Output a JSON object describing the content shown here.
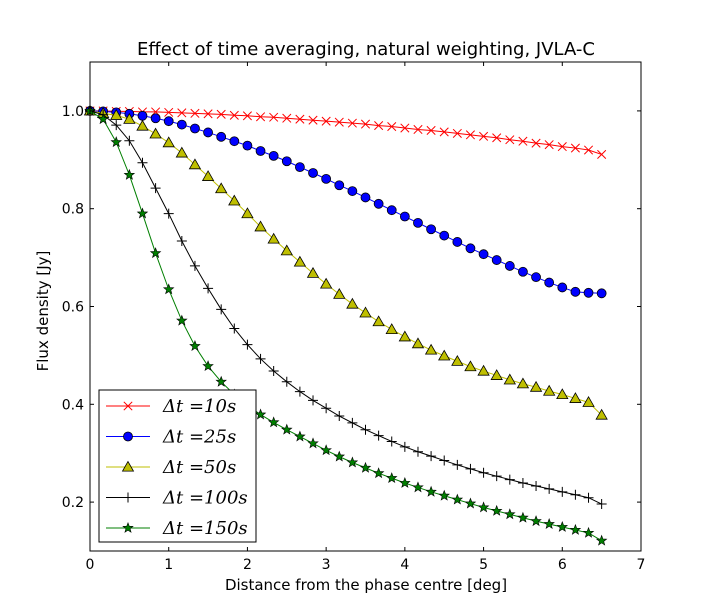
{
  "chart_data": {
    "type": "line",
    "title": "Effect of time averaging, natural weighting, JVLA-C",
    "xlabel": "Distance from the phase centre [deg]",
    "ylabel": "Flux density [Jy]",
    "xlim": [
      0,
      7
    ],
    "ylim": [
      0.1,
      1.1
    ],
    "x_ticks": [
      "0",
      "1",
      "2",
      "3",
      "4",
      "5",
      "6",
      "7"
    ],
    "y_ticks": [
      "0.2",
      "0.4",
      "0.6",
      "0.8",
      "1.0"
    ],
    "legend_placement": "lower-left",
    "grid": false,
    "x": [
      0.0,
      0.1667,
      0.3333,
      0.5,
      0.6667,
      0.8333,
      1.0,
      1.1667,
      1.3333,
      1.5,
      1.6667,
      1.8333,
      2.0,
      2.1667,
      2.3333,
      2.5,
      2.6667,
      2.8333,
      3.0,
      3.1667,
      3.3333,
      3.5,
      3.6667,
      3.8333,
      4.0,
      4.1667,
      4.3333,
      4.5,
      4.6667,
      4.8333,
      5.0,
      5.1667,
      5.3333,
      5.5,
      5.6667,
      5.8333,
      6.0,
      6.1667,
      6.3333,
      6.5
    ],
    "series": [
      {
        "name": "Δt = 10s",
        "label_main": "Δt",
        "label_rest": "=10s",
        "color": "#ff0000",
        "marker": "x",
        "values": [
          1.0,
          1.0,
          0.999,
          0.999,
          0.998,
          0.998,
          0.997,
          0.996,
          0.995,
          0.994,
          0.993,
          0.991,
          0.99,
          0.988,
          0.987,
          0.985,
          0.983,
          0.981,
          0.979,
          0.977,
          0.975,
          0.973,
          0.97,
          0.968,
          0.965,
          0.962,
          0.96,
          0.957,
          0.954,
          0.951,
          0.948,
          0.945,
          0.941,
          0.938,
          0.934,
          0.931,
          0.927,
          0.924,
          0.92,
          0.911
        ]
      },
      {
        "name": "Δt = 25s",
        "label_main": "Δt",
        "label_rest": "=25s",
        "color": "#0000ff",
        "marker": "o",
        "values": [
          1.0,
          0.999,
          0.997,
          0.994,
          0.99,
          0.985,
          0.979,
          0.972,
          0.964,
          0.956,
          0.947,
          0.938,
          0.929,
          0.918,
          0.908,
          0.897,
          0.885,
          0.873,
          0.861,
          0.848,
          0.836,
          0.823,
          0.81,
          0.797,
          0.784,
          0.771,
          0.758,
          0.745,
          0.732,
          0.719,
          0.707,
          0.695,
          0.683,
          0.671,
          0.66,
          0.649,
          0.639,
          0.63,
          0.628,
          0.627
        ]
      },
      {
        "name": "Δt = 50s",
        "label_main": "Δt",
        "label_rest": "=50s",
        "color": "#bfbf00",
        "marker": "^",
        "values": [
          1.0,
          0.995,
          0.991,
          0.983,
          0.969,
          0.953,
          0.935,
          0.914,
          0.89,
          0.866,
          0.841,
          0.816,
          0.79,
          0.763,
          0.738,
          0.714,
          0.691,
          0.668,
          0.646,
          0.625,
          0.605,
          0.587,
          0.569,
          0.553,
          0.538,
          0.524,
          0.511,
          0.499,
          0.488,
          0.477,
          0.468,
          0.459,
          0.45,
          0.442,
          0.435,
          0.427,
          0.42,
          0.412,
          0.404,
          0.378
        ]
      },
      {
        "name": "Δt = 100s",
        "label_main": "Δt",
        "label_rest": "=100s",
        "color": "#000000",
        "marker": "+",
        "values": [
          1.0,
          0.992,
          0.971,
          0.939,
          0.894,
          0.842,
          0.79,
          0.734,
          0.683,
          0.637,
          0.594,
          0.555,
          0.522,
          0.493,
          0.468,
          0.446,
          0.426,
          0.408,
          0.392,
          0.376,
          0.362,
          0.348,
          0.336,
          0.324,
          0.313,
          0.303,
          0.294,
          0.285,
          0.276,
          0.268,
          0.26,
          0.253,
          0.246,
          0.239,
          0.233,
          0.227,
          0.221,
          0.215,
          0.209,
          0.196
        ]
      },
      {
        "name": "Δt = 150s",
        "label_main": "Δt",
        "label_rest": "=150s",
        "color": "#007f00",
        "marker": "*",
        "values": [
          1.0,
          0.983,
          0.936,
          0.869,
          0.79,
          0.709,
          0.635,
          0.571,
          0.519,
          0.478,
          0.446,
          0.42,
          0.398,
          0.379,
          0.363,
          0.348,
          0.334,
          0.32,
          0.306,
          0.293,
          0.281,
          0.27,
          0.259,
          0.249,
          0.239,
          0.23,
          0.221,
          0.213,
          0.205,
          0.197,
          0.189,
          0.182,
          0.175,
          0.168,
          0.161,
          0.155,
          0.149,
          0.143,
          0.137,
          0.121
        ]
      }
    ]
  }
}
